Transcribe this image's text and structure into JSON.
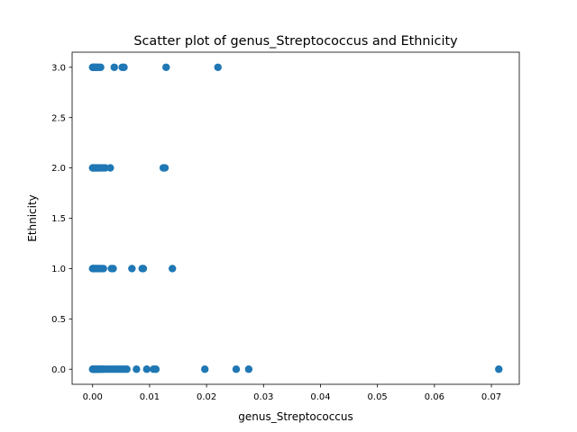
{
  "chart_data": {
    "type": "scatter",
    "title": "Scatter plot of genus_Streptococcus and Ethnicity",
    "xlabel": "genus_Streptococcus",
    "ylabel": "Ethnicity",
    "xlim": [
      -0.0036,
      0.0749
    ],
    "ylim": [
      -0.15,
      3.15
    ],
    "x_ticks": [
      0.0,
      0.01,
      0.02,
      0.03,
      0.04,
      0.05,
      0.06,
      0.07
    ],
    "x_tick_labels": [
      "0.00",
      "0.01",
      "0.02",
      "0.03",
      "0.04",
      "0.05",
      "0.06",
      "0.07"
    ],
    "y_ticks": [
      0.0,
      0.5,
      1.0,
      1.5,
      2.0,
      2.5,
      3.0
    ],
    "y_tick_labels": [
      "0.0",
      "0.5",
      "1.0",
      "1.5",
      "2.0",
      "2.5",
      "3.0"
    ],
    "grid": false,
    "marker_color": "#1f77b4",
    "series": [
      {
        "x": [
          0.0,
          0.0001,
          0.0002,
          0.0003,
          0.0005,
          0.0007,
          0.0009,
          0.0012,
          0.0014,
          0.0038,
          0.0052,
          0.0055,
          0.0129,
          0.022,
          0.0,
          0.0001,
          0.0002,
          0.0004,
          0.0006,
          0.0008,
          0.001,
          0.0012,
          0.0015,
          0.0018,
          0.0022,
          0.0031,
          0.0124,
          0.0127,
          0.0,
          0.0001,
          0.0002,
          0.0003,
          0.0005,
          0.0007,
          0.0009,
          0.0011,
          0.0013,
          0.0016,
          0.0019,
          0.0033,
          0.0036,
          0.0069,
          0.0087,
          0.0089,
          0.014,
          0.0,
          0.0001,
          0.0002,
          0.0003,
          0.0004,
          0.0006,
          0.0008,
          0.001,
          0.0012,
          0.0014,
          0.0017,
          0.002,
          0.0025,
          0.003,
          0.0035,
          0.004,
          0.0045,
          0.005,
          0.0055,
          0.006,
          0.0077,
          0.0095,
          0.0107,
          0.0111,
          0.0197,
          0.0252,
          0.0274,
          0.0713
        ],
        "y": [
          3,
          3,
          3,
          3,
          3,
          3,
          3,
          3,
          3,
          3,
          3,
          3,
          3,
          3,
          2,
          2,
          2,
          2,
          2,
          2,
          2,
          2,
          2,
          2,
          2,
          2,
          2,
          2,
          1,
          1,
          1,
          1,
          1,
          1,
          1,
          1,
          1,
          1,
          1,
          1,
          1,
          1,
          1,
          1,
          1,
          0,
          0,
          0,
          0,
          0,
          0,
          0,
          0,
          0,
          0,
          0,
          0,
          0,
          0,
          0,
          0,
          0,
          0,
          0,
          0,
          0,
          0,
          0,
          0,
          0,
          0,
          0,
          0
        ]
      }
    ]
  }
}
